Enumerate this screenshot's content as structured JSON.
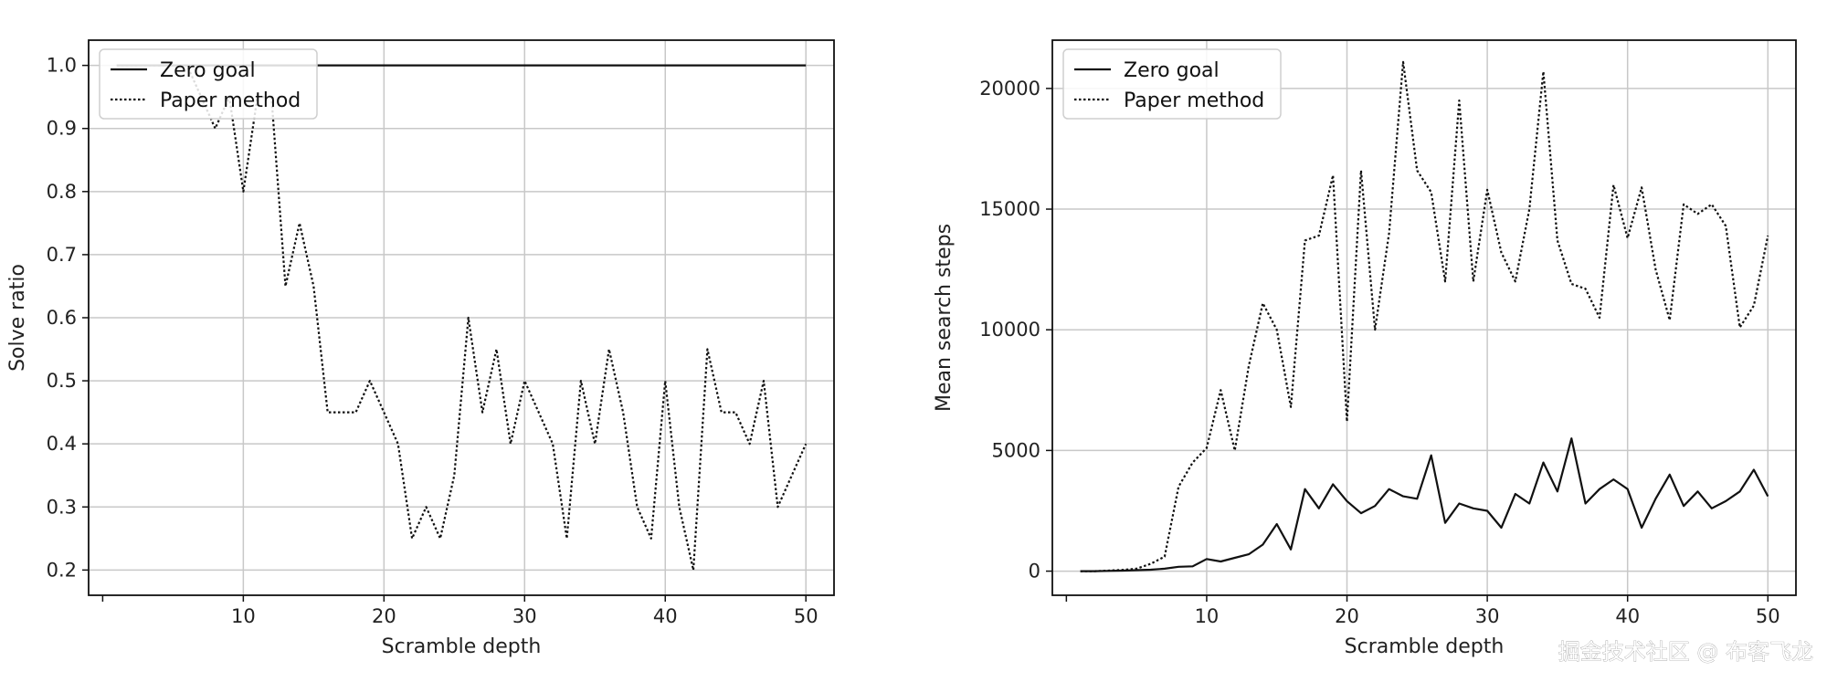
{
  "watermark": "掘金技术社区 @ 布客飞龙",
  "chart_data": [
    {
      "type": "line",
      "xlabel": "Scramble depth",
      "ylabel": "Solve ratio",
      "xlim": [
        -1,
        52
      ],
      "ylim": [
        0.16,
        1.04
      ],
      "xticks": [
        0,
        10,
        20,
        30,
        40,
        50
      ],
      "xtick_labels": [
        "",
        "10",
        "20",
        "30",
        "40",
        "50"
      ],
      "yticks": [
        0.2,
        0.3,
        0.4,
        0.5,
        0.6,
        0.7,
        0.8,
        0.9,
        1.0
      ],
      "ytick_labels": [
        "0.2",
        "0.3",
        "0.4",
        "0.5",
        "0.6",
        "0.7",
        "0.8",
        "0.9",
        "1.0"
      ],
      "grid": true,
      "legend_position": "top-left",
      "x": [
        1,
        2,
        3,
        4,
        5,
        6,
        7,
        8,
        9,
        10,
        11,
        12,
        13,
        14,
        15,
        16,
        17,
        18,
        19,
        20,
        21,
        22,
        23,
        24,
        25,
        26,
        27,
        28,
        29,
        30,
        31,
        32,
        33,
        34,
        35,
        36,
        37,
        38,
        39,
        40,
        41,
        42,
        43,
        44,
        45,
        46,
        47,
        48,
        49,
        50
      ],
      "series": [
        {
          "name": "Zero goal",
          "style": "solid",
          "values": [
            1,
            1,
            1,
            1,
            1,
            1,
            1,
            1,
            1,
            1,
            1,
            1,
            1,
            1,
            1,
            1,
            1,
            1,
            1,
            1,
            1,
            1,
            1,
            1,
            1,
            1,
            1,
            1,
            1,
            1,
            1,
            1,
            1,
            1,
            1,
            1,
            1,
            1,
            1,
            1,
            1,
            1,
            1,
            1,
            1,
            1,
            1,
            1,
            1,
            1
          ]
        },
        {
          "name": "Paper method",
          "style": "dotted",
          "values": [
            1,
            1,
            1,
            1,
            1,
            1,
            0.95,
            0.9,
            0.95,
            0.8,
            0.95,
            0.95,
            0.65,
            0.75,
            0.65,
            0.45,
            0.45,
            0.45,
            0.5,
            0.45,
            0.4,
            0.25,
            0.3,
            0.25,
            0.35,
            0.6,
            0.45,
            0.55,
            0.4,
            0.5,
            0.45,
            0.4,
            0.25,
            0.5,
            0.4,
            0.55,
            0.45,
            0.3,
            0.25,
            0.5,
            0.3,
            0.2,
            0.55,
            0.45,
            0.45,
            0.4,
            0.5,
            0.3,
            0.35,
            0.4
          ]
        }
      ]
    },
    {
      "type": "line",
      "xlabel": "Scramble depth",
      "ylabel": "Mean search steps",
      "xlim": [
        -1,
        52
      ],
      "ylim": [
        -1000,
        22000
      ],
      "xticks": [
        0,
        10,
        20,
        30,
        40,
        50
      ],
      "xtick_labels": [
        "",
        "10",
        "20",
        "30",
        "40",
        "50"
      ],
      "yticks": [
        0,
        5000,
        10000,
        15000,
        20000
      ],
      "ytick_labels": [
        "0",
        "5000",
        "10000",
        "15000",
        "20000"
      ],
      "grid": true,
      "legend_position": "top-left",
      "x": [
        1,
        2,
        3,
        4,
        5,
        6,
        7,
        8,
        9,
        10,
        11,
        12,
        13,
        14,
        15,
        16,
        17,
        18,
        19,
        20,
        21,
        22,
        23,
        24,
        25,
        26,
        27,
        28,
        29,
        30,
        31,
        32,
        33,
        34,
        35,
        36,
        37,
        38,
        39,
        40,
        41,
        42,
        43,
        44,
        45,
        46,
        47,
        48,
        49,
        50
      ],
      "series": [
        {
          "name": "Zero goal",
          "style": "solid",
          "values": [
            0,
            0,
            10,
            20,
            40,
            60,
            100,
            180,
            200,
            500,
            400,
            550,
            700,
            1100,
            1950,
            900,
            3400,
            2600,
            3600,
            2900,
            2400,
            2700,
            3400,
            3100,
            3000,
            4800,
            2000,
            2800,
            2600,
            2500,
            1800,
            3200,
            2800,
            4500,
            3300,
            5500,
            2800,
            3400,
            3800,
            3400,
            1800,
            3000,
            4000,
            2700,
            3300,
            2600,
            2900,
            3300,
            4200,
            3100
          ]
        },
        {
          "name": "Paper method",
          "style": "dotted",
          "values": [
            0,
            0,
            20,
            50,
            100,
            300,
            600,
            3500,
            4500,
            5100,
            7500,
            5000,
            8500,
            11100,
            10000,
            6800,
            13700,
            13900,
            16400,
            6200,
            16600,
            10000,
            14000,
            21100,
            16600,
            15700,
            12000,
            19500,
            12000,
            15800,
            13200,
            12000,
            15000,
            20700,
            13700,
            11900,
            11700,
            10500,
            16000,
            13800,
            15900,
            12500,
            10400,
            15200,
            14800,
            15200,
            14300,
            10100,
            11000,
            13900
          ]
        }
      ]
    }
  ]
}
